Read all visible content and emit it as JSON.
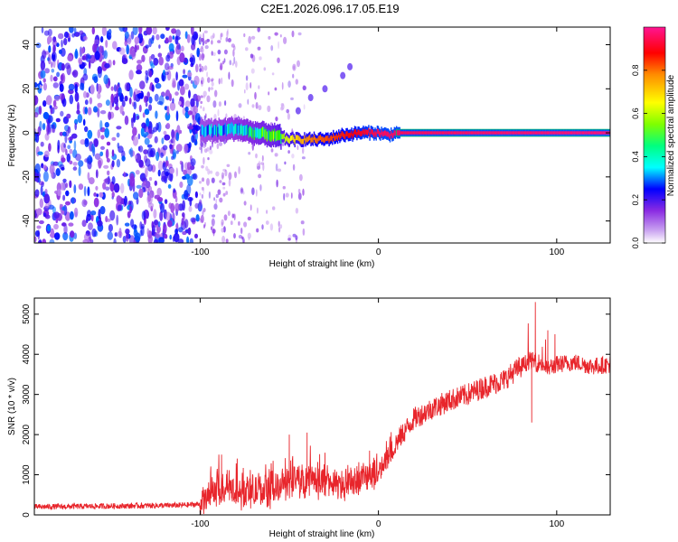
{
  "figure": {
    "title": "C2E1.2026.096.17.05.E19"
  },
  "chart_data": [
    {
      "type": "heatmap",
      "title": "C2E1.2026.096.17.05.E19",
      "xlabel": "Height of straight line (km)",
      "ylabel": "Frequency (Hz)",
      "xlim": [
        -193,
        130
      ],
      "ylim": [
        -50,
        48
      ],
      "xticks": [
        -100,
        0,
        100
      ],
      "yticks": [
        -40,
        -20,
        0,
        20,
        40
      ],
      "colorbar": {
        "label": "Normalized spectral amplitude",
        "range": [
          0,
          1
        ],
        "ticks": [
          0.0,
          0.2,
          0.4,
          0.6,
          0.8
        ],
        "tick_labels": [
          "0.0",
          "0.2",
          "0.4",
          "0.6",
          "0.8"
        ],
        "colormap": [
          "#ffffff",
          "#8a2be2",
          "#0000ff",
          "#00ffff",
          "#00ff00",
          "#ffff00",
          "#ff8c00",
          "#ff0000",
          "#ff1493"
        ]
      },
      "features": {
        "noise_region": {
          "x_range": [
            -193,
            -100
          ],
          "freq_range": [
            -50,
            48
          ],
          "level": 0.25
        },
        "sparse_region": {
          "x_range": [
            -100,
            -60
          ],
          "level": 0.12
        },
        "signal_track": [
          [
            -100,
            1
          ],
          [
            -90,
            1
          ],
          [
            -80,
            2
          ],
          [
            -70,
            0
          ],
          [
            -60,
            -1
          ],
          [
            -50,
            -3
          ],
          [
            -40,
            -3
          ],
          [
            -30,
            -3
          ],
          [
            -20,
            -1
          ],
          [
            -10,
            0
          ],
          [
            0,
            0
          ],
          [
            5,
            -1
          ],
          [
            10,
            0
          ],
          [
            50,
            0
          ],
          [
            100,
            0
          ],
          [
            130,
            0
          ]
        ],
        "track_amplitude": [
          [
            -100,
            0.35
          ],
          [
            -80,
            0.4
          ],
          [
            -60,
            0.5
          ],
          [
            -40,
            0.75
          ],
          [
            -20,
            0.85
          ],
          [
            0,
            0.95
          ],
          [
            130,
            0.98
          ]
        ]
      }
    },
    {
      "type": "line",
      "xlabel": "Height of straight line (km)",
      "ylabel": "SNR (10 * v/v)",
      "xlim": [
        -193,
        130
      ],
      "ylim": [
        0,
        5400
      ],
      "xticks": [
        -100,
        0,
        100
      ],
      "yticks": [
        0,
        1000,
        2000,
        3000,
        4000,
        5000
      ],
      "line_color": "#e8252b",
      "series": [
        {
          "name": "SNR",
          "x": [
            -193,
            -150,
            -110,
            -100,
            -95,
            -90,
            -85,
            -80,
            -70,
            -60,
            -50,
            -40,
            -30,
            -20,
            -10,
            0,
            5,
            10,
            15,
            20,
            30,
            40,
            50,
            60,
            70,
            80,
            85,
            90,
            95,
            100,
            110,
            120,
            130
          ],
          "y": [
            200,
            220,
            240,
            270,
            450,
            650,
            700,
            550,
            580,
            650,
            800,
            900,
            850,
            700,
            950,
            1000,
            1400,
            1800,
            2100,
            2400,
            2650,
            2850,
            3000,
            3200,
            3350,
            3700,
            3850,
            3800,
            3650,
            3750,
            3800,
            3700,
            3750
          ],
          "spikes": [
            [
              -88,
              1500
            ],
            [
              -50,
              2000
            ],
            [
              -40,
              2050
            ],
            [
              -30,
              1550
            ],
            [
              -5,
              1600
            ],
            [
              2,
              1450
            ],
            [
              88,
              5300
            ],
            [
              95,
              4600
            ],
            [
              99,
              4500
            ],
            [
              86,
              2300
            ]
          ]
        }
      ]
    }
  ]
}
